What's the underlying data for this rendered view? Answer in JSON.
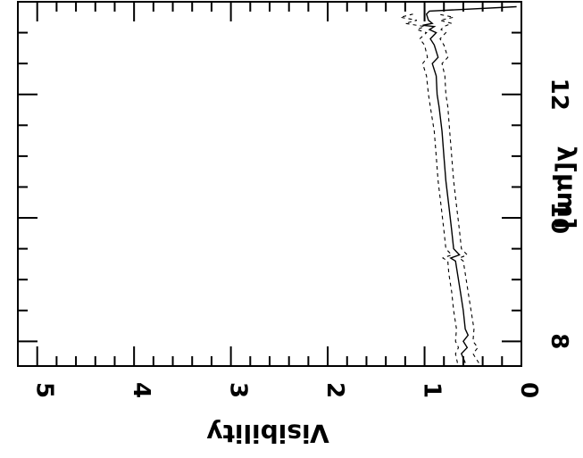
{
  "chart_data": {
    "type": "line",
    "orientation": "rotated 90 degrees clockwise",
    "xlabel": "λ[μm]",
    "ylabel": "Visibility",
    "xlim": [
      7.6,
      13.5
    ],
    "ylim": [
      0,
      5.2
    ],
    "x_ticks": [
      8,
      10,
      12
    ],
    "x_tick_labels": [
      "8",
      "10",
      "12"
    ],
    "y_ticks": [
      0,
      1,
      2,
      3,
      4,
      5
    ],
    "y_tick_labels": [
      "0",
      "1",
      "2",
      "3",
      "4",
      "5"
    ],
    "series": [
      {
        "style": "solid",
        "x": [
          7.65,
          7.8,
          7.9,
          8.0,
          8.1,
          8.2,
          8.5,
          8.8,
          9.1,
          9.3,
          9.35,
          9.4,
          9.5,
          9.8,
          10.2,
          10.6,
          11.0,
          11.4,
          11.8,
          12.0,
          12.3,
          12.5,
          12.6,
          12.8,
          12.9,
          13.0,
          13.05,
          13.1,
          13.12,
          13.15,
          13.2,
          13.3,
          13.35,
          13.42
        ],
        "y": [
          0.58,
          0.62,
          0.56,
          0.6,
          0.55,
          0.58,
          0.6,
          0.63,
          0.66,
          0.68,
          0.73,
          0.64,
          0.7,
          0.72,
          0.75,
          0.78,
          0.8,
          0.82,
          0.85,
          0.87,
          0.88,
          0.92,
          0.86,
          0.9,
          0.94,
          0.88,
          0.95,
          0.9,
          1.02,
          0.92,
          0.96,
          0.98,
          0.95,
          0.05
        ]
      },
      {
        "style": "dashed",
        "x": [
          7.65,
          7.8,
          7.9,
          8.0,
          8.2,
          8.5,
          8.8,
          9.1,
          9.3,
          9.35,
          9.4,
          9.5,
          9.8,
          10.2,
          10.6,
          11.0,
          11.4,
          11.8,
          12.0,
          12.3,
          12.5,
          12.6,
          12.8,
          12.9,
          13.0,
          13.05,
          13.1,
          13.15,
          13.2,
          13.25,
          13.3
        ],
        "y": [
          0.66,
          0.68,
          0.65,
          0.68,
          0.67,
          0.7,
          0.72,
          0.75,
          0.76,
          0.81,
          0.72,
          0.78,
          0.8,
          0.83,
          0.86,
          0.88,
          0.9,
          0.94,
          0.96,
          0.98,
          1.02,
          0.97,
          1.0,
          1.05,
          0.98,
          1.08,
          1.0,
          1.2,
          1.08,
          1.25,
          1.12
        ]
      },
      {
        "style": "dashed",
        "x": [
          7.65,
          7.8,
          7.9,
          8.0,
          8.2,
          8.5,
          8.8,
          9.1,
          9.3,
          9.35,
          9.4,
          9.5,
          9.8,
          10.2,
          10.6,
          11.0,
          11.4,
          11.8,
          12.0,
          12.3,
          12.5,
          12.6,
          12.8,
          12.9,
          13.0,
          13.05,
          13.1,
          13.15,
          13.2,
          13.25,
          13.3
        ],
        "y": [
          0.44,
          0.5,
          0.45,
          0.5,
          0.49,
          0.52,
          0.55,
          0.58,
          0.6,
          0.64,
          0.56,
          0.62,
          0.64,
          0.67,
          0.7,
          0.72,
          0.74,
          0.76,
          0.78,
          0.79,
          0.82,
          0.76,
          0.8,
          0.84,
          0.78,
          0.83,
          0.8,
          0.72,
          0.84,
          0.7,
          0.86
        ]
      }
    ]
  }
}
